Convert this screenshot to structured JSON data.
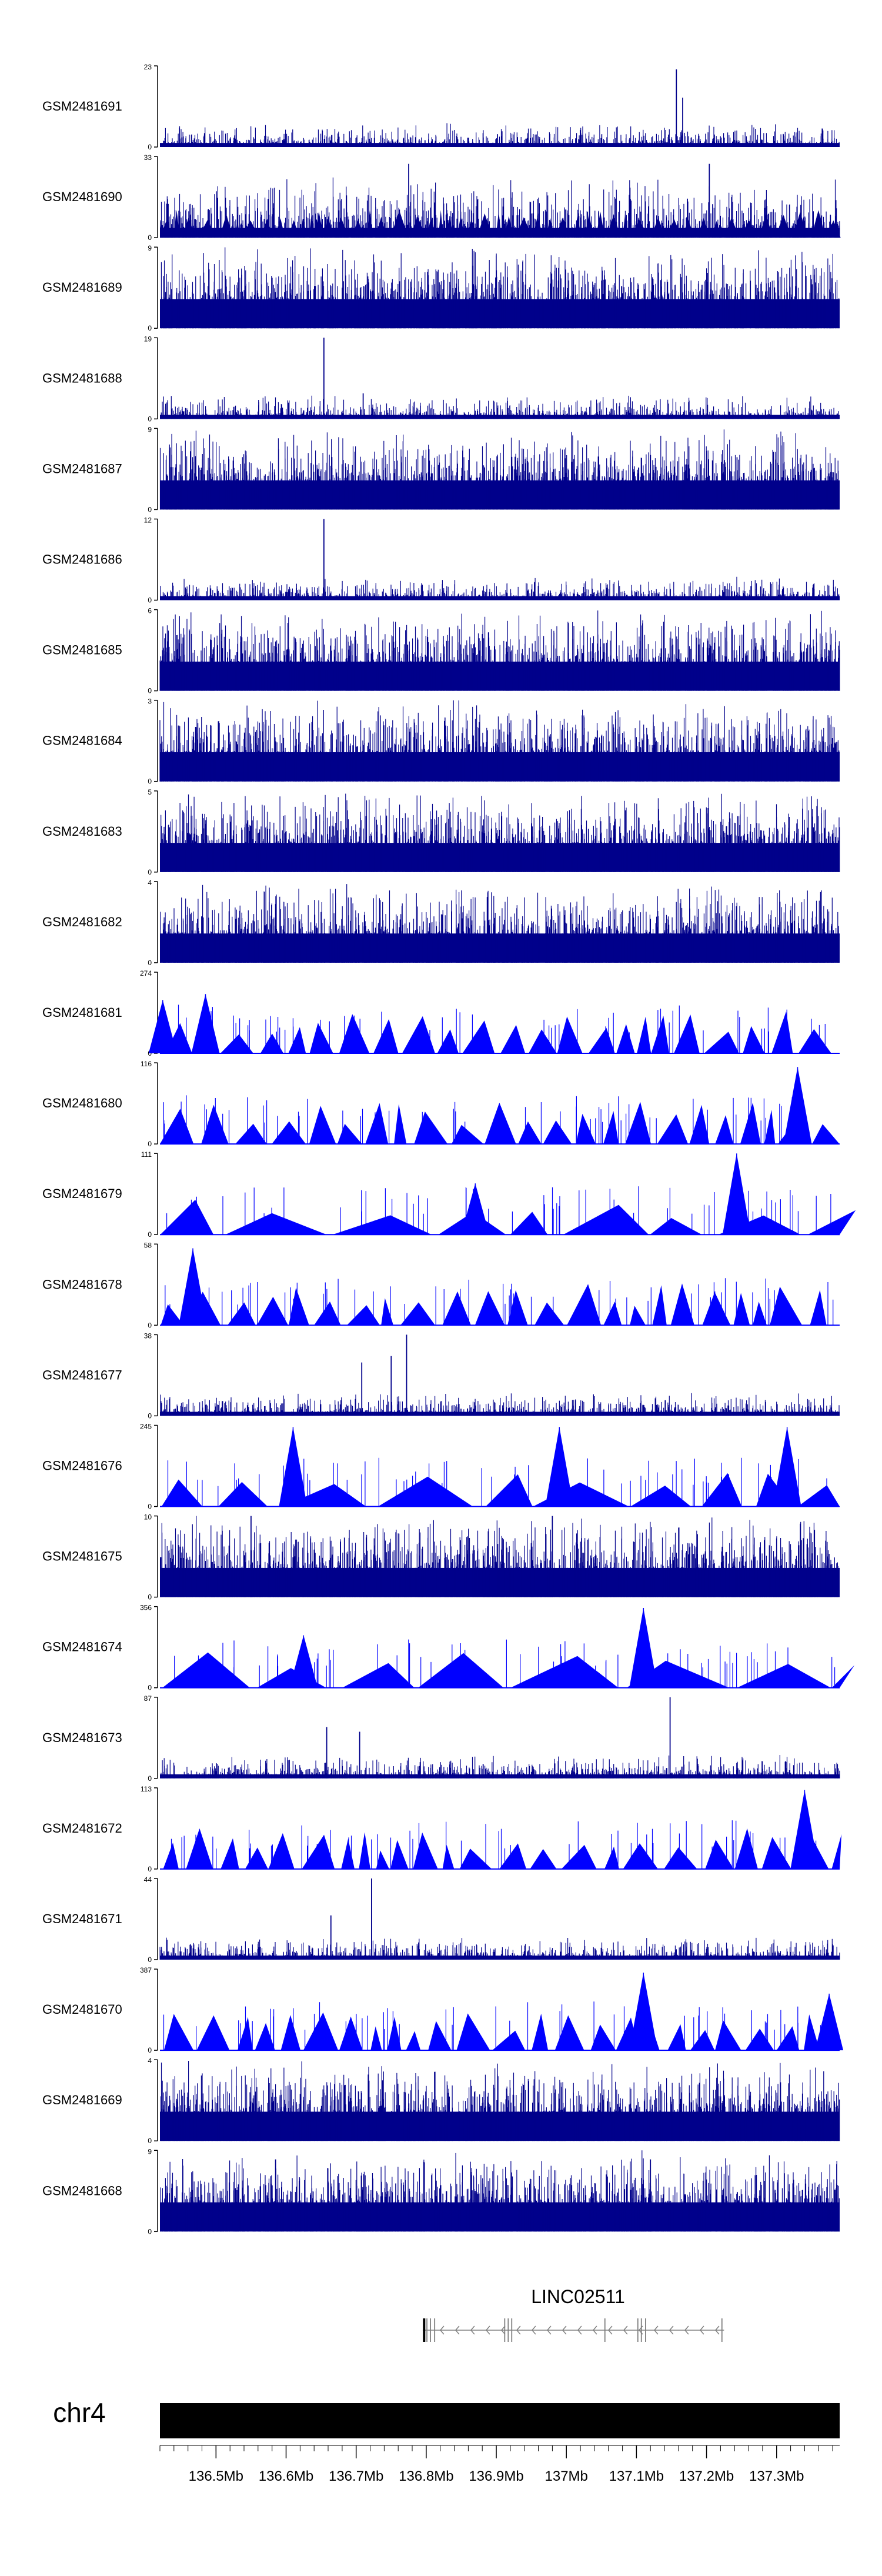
{
  "chart_data": {
    "type": "area",
    "title": "",
    "chromosome": "chr4",
    "gene": {
      "name": "LINC02511",
      "start_mb": 136.795,
      "end_mb": 137.225,
      "strand": "-",
      "exons_mb": [
        136.797,
        136.801,
        136.806,
        136.812,
        136.912,
        136.917,
        136.922,
        137.055,
        137.102,
        137.107,
        137.113,
        137.222
      ]
    },
    "x_range_mb": [
      136.42,
      137.39
    ],
    "x_ticks": [
      {
        "mb": 136.5,
        "label": "136.5Mb"
      },
      {
        "mb": 136.6,
        "label": "136.6Mb"
      },
      {
        "mb": 136.7,
        "label": "136.7Mb"
      },
      {
        "mb": 136.8,
        "label": "136.8Mb"
      },
      {
        "mb": 136.9,
        "label": "136.9Mb"
      },
      {
        "mb": 137.0,
        "label": "137Mb"
      },
      {
        "mb": 137.1,
        "label": "137.1Mb"
      },
      {
        "mb": 137.2,
        "label": "137.2Mb"
      },
      {
        "mb": 137.3,
        "label": "137.3Mb"
      }
    ],
    "tracks": [
      {
        "name": "GSM2481691",
        "ymin": 0,
        "ymax": 23,
        "ymax_label": "23",
        "pattern": "sparse",
        "peaks": [
          {
            "mb": 137.157,
            "v": 22
          },
          {
            "mb": 137.166,
            "v": 14
          }
        ]
      },
      {
        "name": "GSM2481690",
        "ymin": 0,
        "ymax": 33,
        "ymax_label": "33",
        "pattern": "dense-tri",
        "peaks": [
          {
            "mb": 136.775,
            "v": 30
          },
          {
            "mb": 137.204,
            "v": 30
          }
        ]
      },
      {
        "name": "GSM2481689",
        "ymin": 0,
        "ymax": 9,
        "ymax_label": "9",
        "pattern": "dense",
        "peaks": []
      },
      {
        "name": "GSM2481688",
        "ymin": 0,
        "ymax": 19,
        "ymax_label": "19",
        "pattern": "sparse",
        "peaks": [
          {
            "mb": 136.654,
            "v": 19
          },
          {
            "mb": 136.71,
            "v": 6
          }
        ]
      },
      {
        "name": "GSM2481687",
        "ymin": 0,
        "ymax": 9,
        "ymax_label": "9",
        "pattern": "dense",
        "peaks": []
      },
      {
        "name": "GSM2481686",
        "ymin": 0,
        "ymax": 12,
        "ymax_label": "12",
        "pattern": "sparse",
        "peaks": [
          {
            "mb": 136.654,
            "v": 12
          }
        ]
      },
      {
        "name": "GSM2481685",
        "ymin": 0,
        "ymax": 6,
        "ymax_label": "6",
        "pattern": "dense",
        "peaks": []
      },
      {
        "name": "GSM2481684",
        "ymin": 0,
        "ymax": 3,
        "ymax_label": "3",
        "pattern": "dense",
        "peaks": []
      },
      {
        "name": "GSM2481683",
        "ymin": 0,
        "ymax": 5,
        "ymax_label": "5",
        "pattern": "dense",
        "peaks": []
      },
      {
        "name": "GSM2481682",
        "ymin": 0,
        "ymax": 4,
        "ymax_label": "4",
        "pattern": "dense",
        "peaks": []
      },
      {
        "name": "GSM2481681",
        "ymin": 0,
        "ymax": 274,
        "ymax_label": "274",
        "pattern": "tri",
        "peaks": [
          {
            "mb": 136.485,
            "v": 200
          },
          {
            "mb": 136.424,
            "v": 180
          }
        ]
      },
      {
        "name": "GSM2481680",
        "ymin": 0,
        "ymax": 116,
        "ymax_label": "116",
        "pattern": "tri",
        "peaks": [
          {
            "mb": 137.33,
            "v": 110
          }
        ]
      },
      {
        "name": "GSM2481679",
        "ymin": 0,
        "ymax": 111,
        "ymax_label": "111",
        "pattern": "wide-tri",
        "peaks": [
          {
            "mb": 137.243,
            "v": 111
          },
          {
            "mb": 136.87,
            "v": 70
          }
        ]
      },
      {
        "name": "GSM2481678",
        "ymin": 0,
        "ymax": 58,
        "ymax_label": "58",
        "pattern": "tri",
        "peaks": [
          {
            "mb": 136.467,
            "v": 55
          }
        ]
      },
      {
        "name": "GSM2481677",
        "ymin": 0,
        "ymax": 38,
        "ymax_label": "38",
        "pattern": "sparse",
        "peaks": [
          {
            "mb": 136.772,
            "v": 38
          },
          {
            "mb": 136.75,
            "v": 28
          },
          {
            "mb": 136.708,
            "v": 25
          }
        ]
      },
      {
        "name": "GSM2481676",
        "ymin": 0,
        "ymax": 245,
        "ymax_label": "245",
        "pattern": "wide-tri",
        "peaks": [
          {
            "mb": 136.61,
            "v": 240
          },
          {
            "mb": 136.99,
            "v": 240
          },
          {
            "mb": 137.315,
            "v": 240
          }
        ]
      },
      {
        "name": "GSM2481675",
        "ymin": 0,
        "ymax": 10,
        "ymax_label": "10",
        "pattern": "dense",
        "peaks": [
          {
            "mb": 136.55,
            "v": 10
          },
          {
            "mb": 136.98,
            "v": 10
          }
        ]
      },
      {
        "name": "GSM2481674",
        "ymin": 0,
        "ymax": 356,
        "ymax_label": "356",
        "pattern": "wide-tri",
        "peaks": [
          {
            "mb": 137.11,
            "v": 350
          },
          {
            "mb": 136.625,
            "v": 230
          }
        ]
      },
      {
        "name": "GSM2481673",
        "ymin": 0,
        "ymax": 87,
        "ymax_label": "87",
        "pattern": "sparse",
        "peaks": [
          {
            "mb": 137.148,
            "v": 87
          },
          {
            "mb": 136.658,
            "v": 55
          },
          {
            "mb": 136.705,
            "v": 50
          }
        ]
      },
      {
        "name": "GSM2481672",
        "ymin": 0,
        "ymax": 113,
        "ymax_label": "113",
        "pattern": "tri",
        "peaks": [
          {
            "mb": 137.34,
            "v": 110
          }
        ]
      },
      {
        "name": "GSM2481671",
        "ymin": 0,
        "ymax": 44,
        "ymax_label": "44",
        "pattern": "sparse",
        "peaks": [
          {
            "mb": 136.722,
            "v": 44
          },
          {
            "mb": 136.664,
            "v": 24
          }
        ]
      },
      {
        "name": "GSM2481670",
        "ymin": 0,
        "ymax": 387,
        "ymax_label": "387",
        "pattern": "tri",
        "peaks": [
          {
            "mb": 137.11,
            "v": 370
          },
          {
            "mb": 137.375,
            "v": 270
          }
        ]
      },
      {
        "name": "GSM2481669",
        "ymin": 0,
        "ymax": 4,
        "ymax_label": "4",
        "pattern": "dense",
        "peaks": []
      },
      {
        "name": "GSM2481668",
        "ymin": 0,
        "ymax": 9,
        "ymax_label": "9",
        "pattern": "dense",
        "peaks": [
          {
            "mb": 136.585,
            "v": 8
          },
          {
            "mb": 137.12,
            "v": 8
          }
        ]
      }
    ]
  },
  "colors": {
    "dense": "#00008b",
    "triangles": "#0000ff",
    "axis": "#000000",
    "text": "#000000",
    "gene": "#808080",
    "ideogram": "#000000"
  }
}
